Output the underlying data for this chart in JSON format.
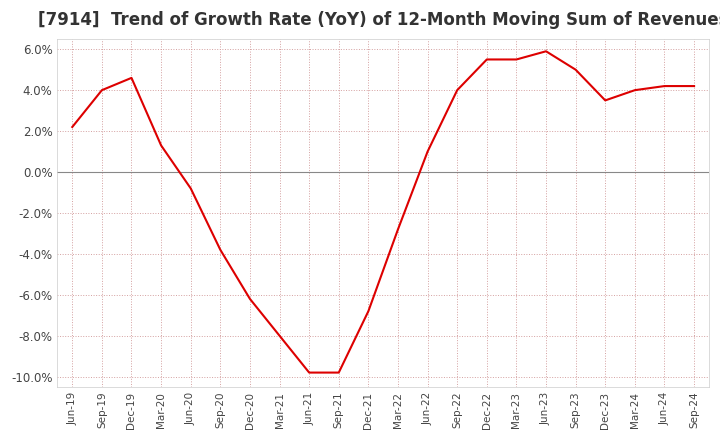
{
  "title": "[7914]  Trend of Growth Rate (YoY) of 12-Month Moving Sum of Revenues",
  "title_fontsize": 12,
  "line_color": "#dd0000",
  "background_color": "#ffffff",
  "grid_color": "#d4a0a0",
  "ylim": [
    -0.105,
    0.065
  ],
  "yticks": [
    -0.1,
    -0.08,
    -0.06,
    -0.04,
    -0.02,
    0.0,
    0.02,
    0.04,
    0.06
  ],
  "x_labels": [
    "Jun-19",
    "Sep-19",
    "Dec-19",
    "Mar-20",
    "Jun-20",
    "Sep-20",
    "Dec-20",
    "Mar-21",
    "Jun-21",
    "Sep-21",
    "Dec-21",
    "Mar-22",
    "Jun-22",
    "Sep-22",
    "Dec-22",
    "Mar-23",
    "Jun-23",
    "Sep-23",
    "Dec-23",
    "Mar-24",
    "Jun-24",
    "Sep-24"
  ],
  "values": [
    0.022,
    0.04,
    0.046,
    0.013,
    -0.008,
    -0.038,
    -0.062,
    -0.08,
    -0.098,
    -0.098,
    -0.068,
    -0.028,
    0.01,
    0.04,
    0.055,
    0.055,
    0.059,
    0.05,
    0.035,
    0.04,
    0.042,
    0.042
  ]
}
